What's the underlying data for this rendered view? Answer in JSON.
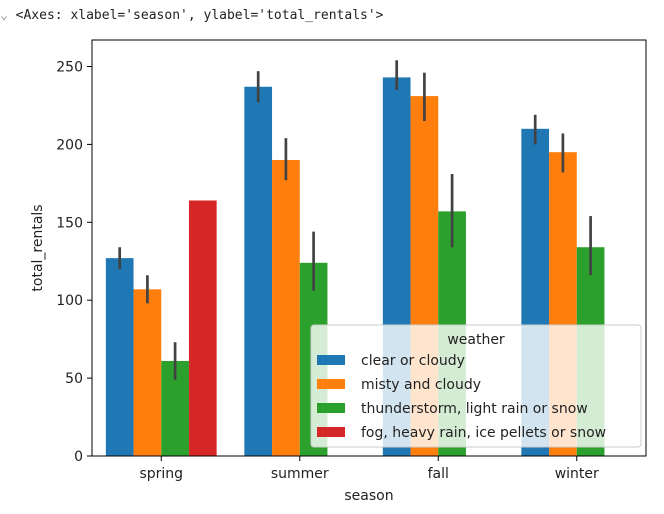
{
  "output": {
    "marker": "⌄",
    "repr": "<Axes: xlabel='season', ylabel='total_rentals'>"
  },
  "chart_data": {
    "type": "bar",
    "xlabel": "season",
    "ylabel": "total_rentals",
    "categories": [
      "spring",
      "summer",
      "fall",
      "winter"
    ],
    "ylim": [
      0,
      267
    ],
    "yticks": [
      0,
      50,
      100,
      150,
      200,
      250
    ],
    "legend": {
      "title": "weather",
      "placement": "lower-right"
    },
    "series": [
      {
        "name": "clear or cloudy",
        "color": "#1f77b4",
        "values": [
          127,
          237,
          243,
          210
        ],
        "err_low": [
          120,
          227,
          235,
          200
        ],
        "err_high": [
          134,
          247,
          254,
          219
        ]
      },
      {
        "name": "misty and cloudy",
        "color": "#ff7f0e",
        "values": [
          107,
          190,
          231,
          195
        ],
        "err_low": [
          98,
          177,
          215,
          182
        ],
        "err_high": [
          116,
          204,
          246,
          207
        ]
      },
      {
        "name": "thunderstorm, light rain or snow",
        "color": "#2ca02c",
        "values": [
          61,
          124,
          157,
          134
        ],
        "err_low": [
          49,
          106,
          134,
          116
        ],
        "err_high": [
          73,
          144,
          181,
          154
        ]
      },
      {
        "name": "fog, heavy rain, ice pellets or snow",
        "color": "#d62728",
        "values": [
          164,
          null,
          null,
          null
        ],
        "err_low": [
          null,
          null,
          null,
          null
        ],
        "err_high": [
          null,
          null,
          null,
          null
        ]
      }
    ]
  }
}
